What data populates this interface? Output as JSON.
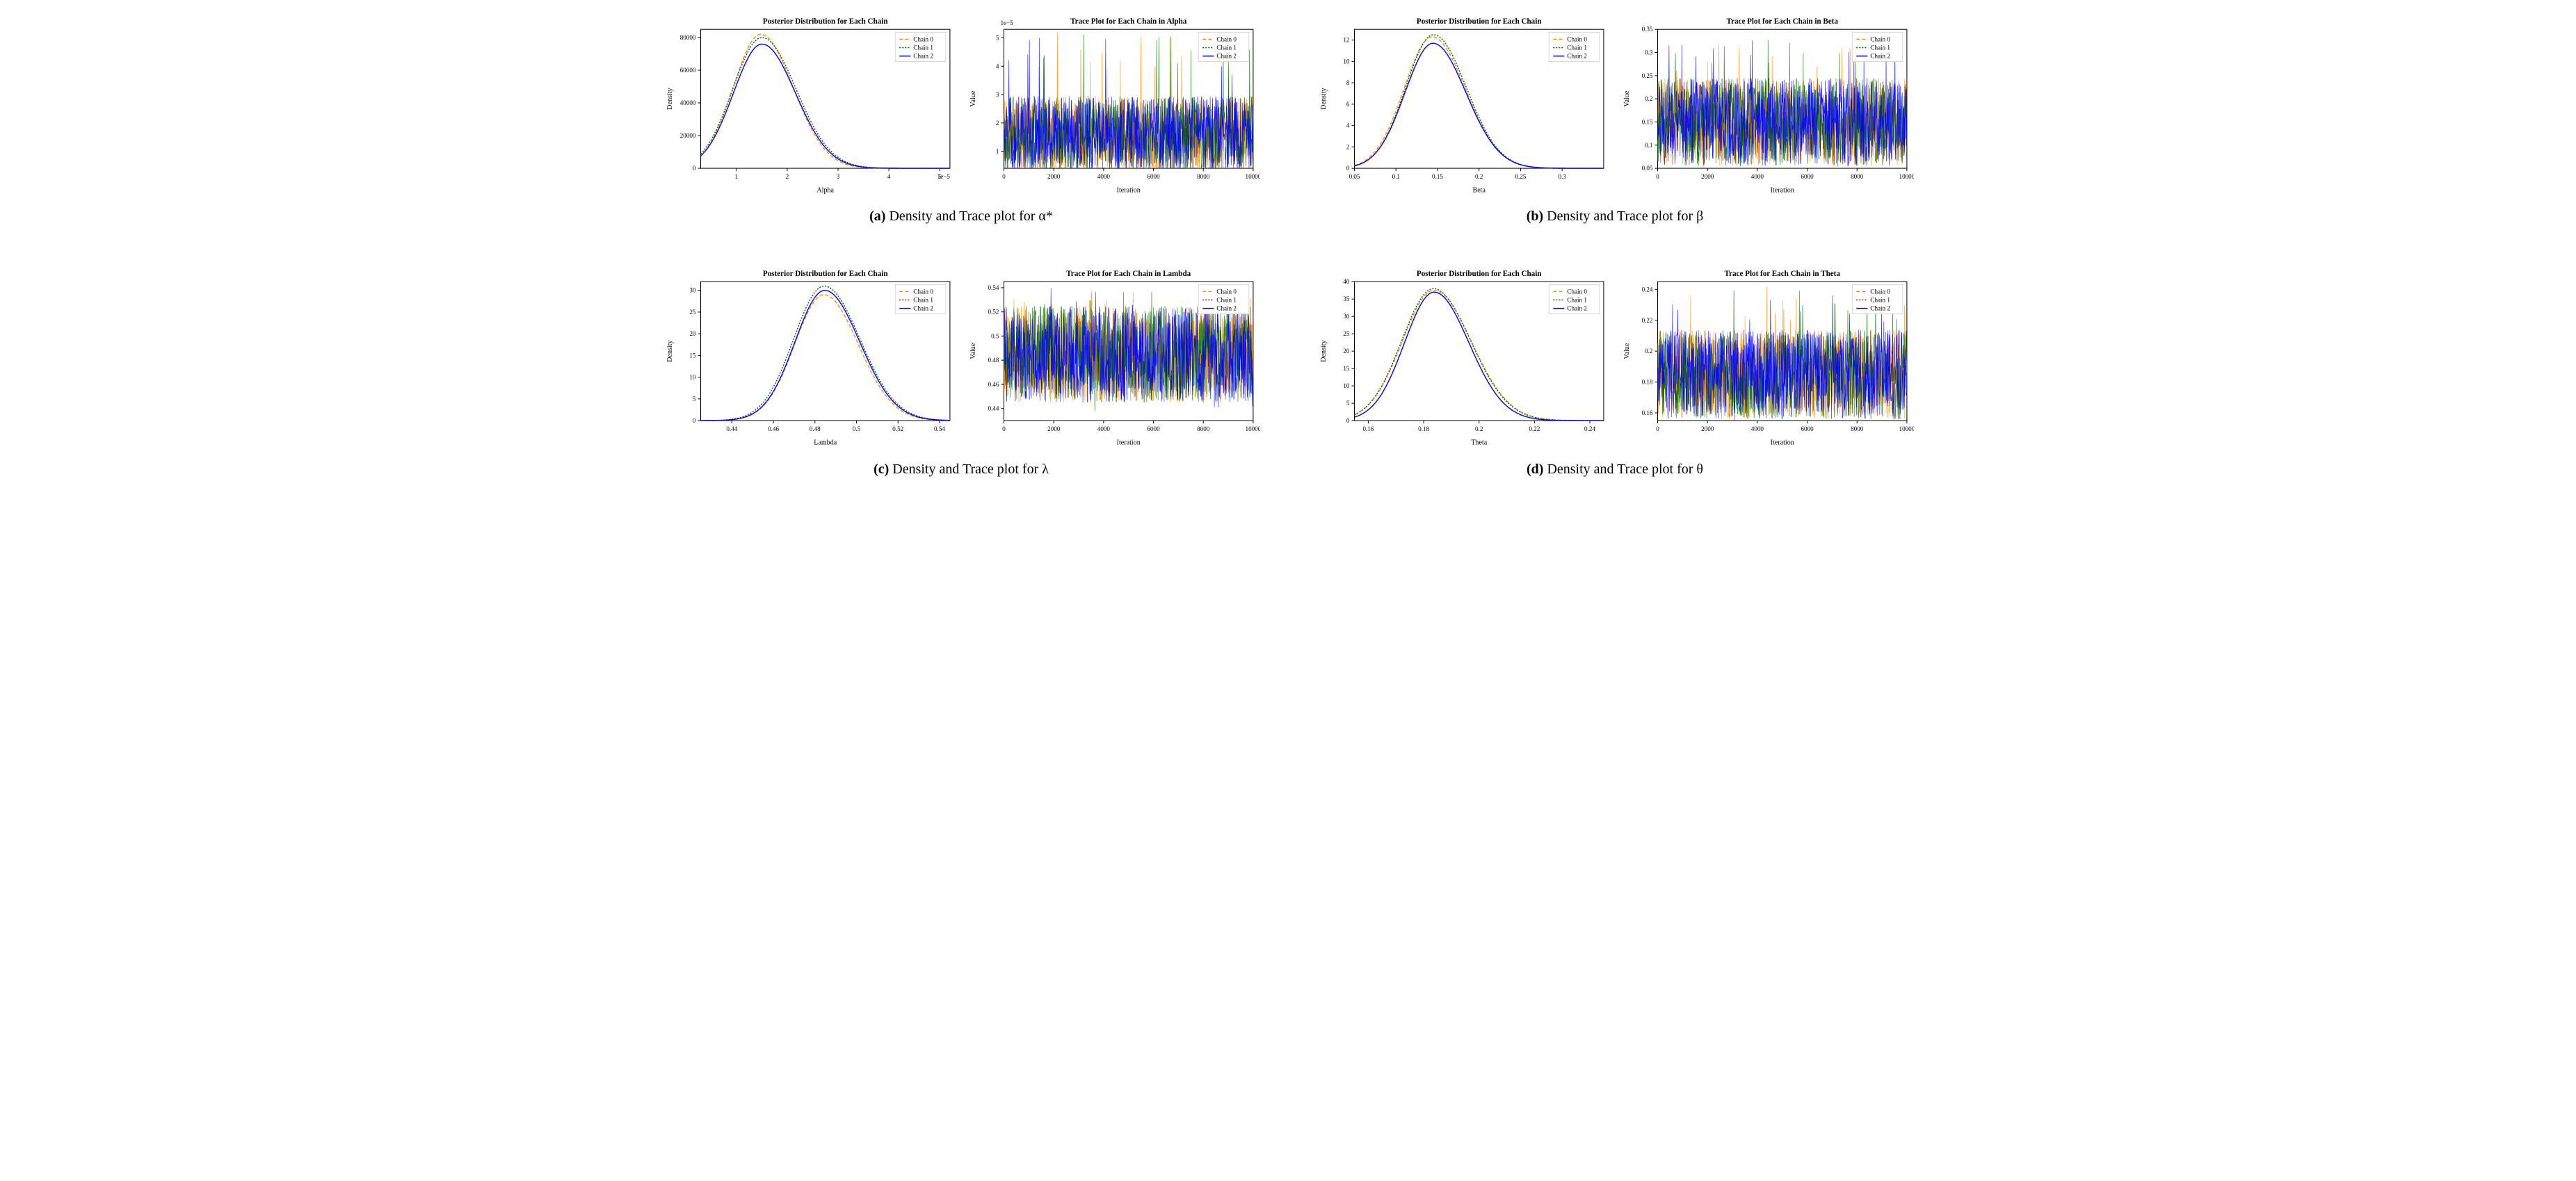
{
  "global": {
    "legend_labels": [
      "Chain 0",
      "Chain 1",
      "Chain 2"
    ],
    "legend_colors": [
      "#ff8c00",
      "#006400",
      "#0000ff"
    ],
    "legend_dashes": [
      "5,3",
      "2,2",
      ""
    ],
    "legend_fontsize": 9,
    "axis_label_fontsize": 10,
    "title_fontsize": 11,
    "tick_fontsize": 9,
    "background_color": "#ffffff",
    "border_color": "#000000",
    "grid_color": "#e0e0e0",
    "trace_alpha": 0.9
  },
  "panels": [
    {
      "id": "a",
      "caption_letter": "(a)",
      "caption_text": "Density and Trace plot for α*",
      "density": {
        "title": "Posterior Distribution for Each Chain",
        "xlabel": "Alpha",
        "ylabel": "Density",
        "xlim": [
          0.3,
          5.2
        ],
        "ylim": [
          0,
          85000
        ],
        "xticks": [
          1,
          2,
          3,
          4,
          5
        ],
        "yticks": [
          0,
          20000,
          40000,
          60000,
          80000
        ],
        "x_exponent_label": "1e−5",
        "mode": 1.5,
        "spread": 0.55,
        "peaks": [
          82000,
          80000,
          76000
        ]
      },
      "trace": {
        "title": "Trace Plot for Each Chain in Alpha",
        "xlabel": "Iteration",
        "ylabel": "Value",
        "xlim": [
          0,
          10000
        ],
        "ylim": [
          0.4,
          5.3
        ],
        "xticks": [
          0,
          2000,
          4000,
          6000,
          8000,
          10000
        ],
        "yticks": [
          1,
          2,
          3,
          4,
          5
        ],
        "y_exponent_label": "1e−5",
        "low": 0.5,
        "high": 3.2,
        "center": 1.6,
        "spikes_to": 5.2
      }
    },
    {
      "id": "b",
      "caption_letter": "(b)",
      "caption_text": "Density and Trace plot for β",
      "density": {
        "title": "Posterior Distribution for Each Chain",
        "xlabel": "Beta",
        "ylabel": "Density",
        "xlim": [
          0.05,
          0.35
        ],
        "ylim": [
          0,
          13
        ],
        "xticks": [
          0.05,
          0.1,
          0.15,
          0.2,
          0.25,
          0.3
        ],
        "yticks": [
          0,
          2,
          4,
          6,
          8,
          10,
          12
        ],
        "mode": 0.145,
        "spread": 0.033,
        "peaks": [
          12.3,
          12.5,
          11.7
        ]
      },
      "trace": {
        "title": "Trace Plot for Each Chain in Beta",
        "xlabel": "Iteration",
        "ylabel": "Value",
        "xlim": [
          0,
          10000
        ],
        "ylim": [
          0.05,
          0.35
        ],
        "xticks": [
          0,
          2000,
          4000,
          6000,
          8000,
          10000
        ],
        "yticks": [
          0.05,
          0.1,
          0.15,
          0.2,
          0.25,
          0.3,
          0.35
        ],
        "low": 0.07,
        "high": 0.26,
        "center": 0.15,
        "spikes_to": 0.33
      }
    },
    {
      "id": "c",
      "caption_letter": "(c)",
      "caption_text": "Density and Trace plot for λ",
      "density": {
        "title": "Posterior Distribution for Each Chain",
        "xlabel": "Lambda",
        "ylabel": "Density",
        "xlim": [
          0.425,
          0.545
        ],
        "ylim": [
          0,
          32
        ],
        "xticks": [
          0.44,
          0.46,
          0.48,
          0.5,
          0.52,
          0.54
        ],
        "yticks": [
          0,
          5,
          10,
          15,
          20,
          25,
          30
        ],
        "mode": 0.484,
        "spread": 0.014,
        "peaks": [
          29,
          31,
          30
        ]
      },
      "trace": {
        "title": "Trace Plot for Each Chain in Lambda",
        "xlabel": "Iteration",
        "ylabel": "Value",
        "xlim": [
          0,
          10000
        ],
        "ylim": [
          0.43,
          0.545
        ],
        "xticks": [
          0,
          2000,
          4000,
          6000,
          8000,
          10000
        ],
        "yticks": [
          0.44,
          0.46,
          0.48,
          0.5,
          0.52,
          0.54
        ],
        "low": 0.445,
        "high": 0.525,
        "center": 0.485,
        "spikes_to": 0.54
      }
    },
    {
      "id": "d",
      "caption_letter": "(d)",
      "caption_text": "Density and Trace plot for θ",
      "density": {
        "title": "Posterior Distribution for Each Chain",
        "xlabel": "Theta",
        "ylabel": "Density",
        "xlim": [
          0.155,
          0.245
        ],
        "ylim": [
          0,
          40
        ],
        "xticks": [
          0.16,
          0.18,
          0.2,
          0.22,
          0.24
        ],
        "yticks": [
          0,
          5,
          10,
          15,
          20,
          25,
          30,
          35,
          40
        ],
        "mode": 0.184,
        "spread": 0.011,
        "peaks": [
          37.5,
          38,
          37
        ]
      },
      "trace": {
        "title": "Trace Plot for Each Chain in Theta",
        "xlabel": "Iteration",
        "ylabel": "Value",
        "xlim": [
          0,
          10000
        ],
        "ylim": [
          0.155,
          0.245
        ],
        "xticks": [
          0,
          2000,
          4000,
          6000,
          8000,
          10000
        ],
        "yticks": [
          0.16,
          0.18,
          0.2,
          0.22,
          0.24
        ],
        "low": 0.162,
        "high": 0.22,
        "center": 0.185,
        "spikes_to": 0.243
      }
    }
  ]
}
